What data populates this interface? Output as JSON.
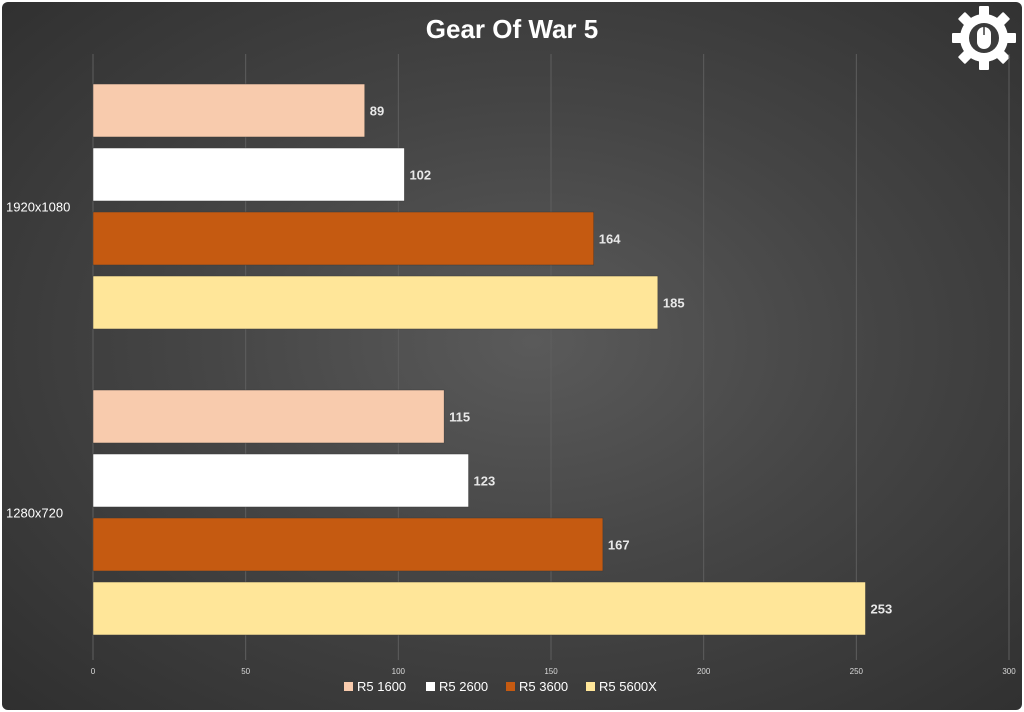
{
  "chart_data": {
    "type": "bar",
    "orientation": "horizontal",
    "title": "Gear Of War 5",
    "categories": [
      "1920x1080",
      "1280x720"
    ],
    "series": [
      {
        "name": "R5 1600",
        "color": "#f8cbad",
        "values": [
          89,
          115
        ]
      },
      {
        "name": "R5 2600",
        "color": "#ffffff",
        "values": [
          102,
          123
        ]
      },
      {
        "name": "R5 3600",
        "color": "#c55a11",
        "values": [
          164,
          167
        ]
      },
      {
        "name": "R5 5600X",
        "color": "#ffe699",
        "values": [
          185,
          253
        ]
      }
    ],
    "xlim": [
      0,
      300
    ],
    "xticks": [
      0,
      50,
      100,
      150,
      200,
      250,
      300
    ],
    "grid": true,
    "legend_position": "bottom"
  },
  "logo": {
    "icon": "gear-mouse-icon",
    "color": "#ffffff"
  }
}
